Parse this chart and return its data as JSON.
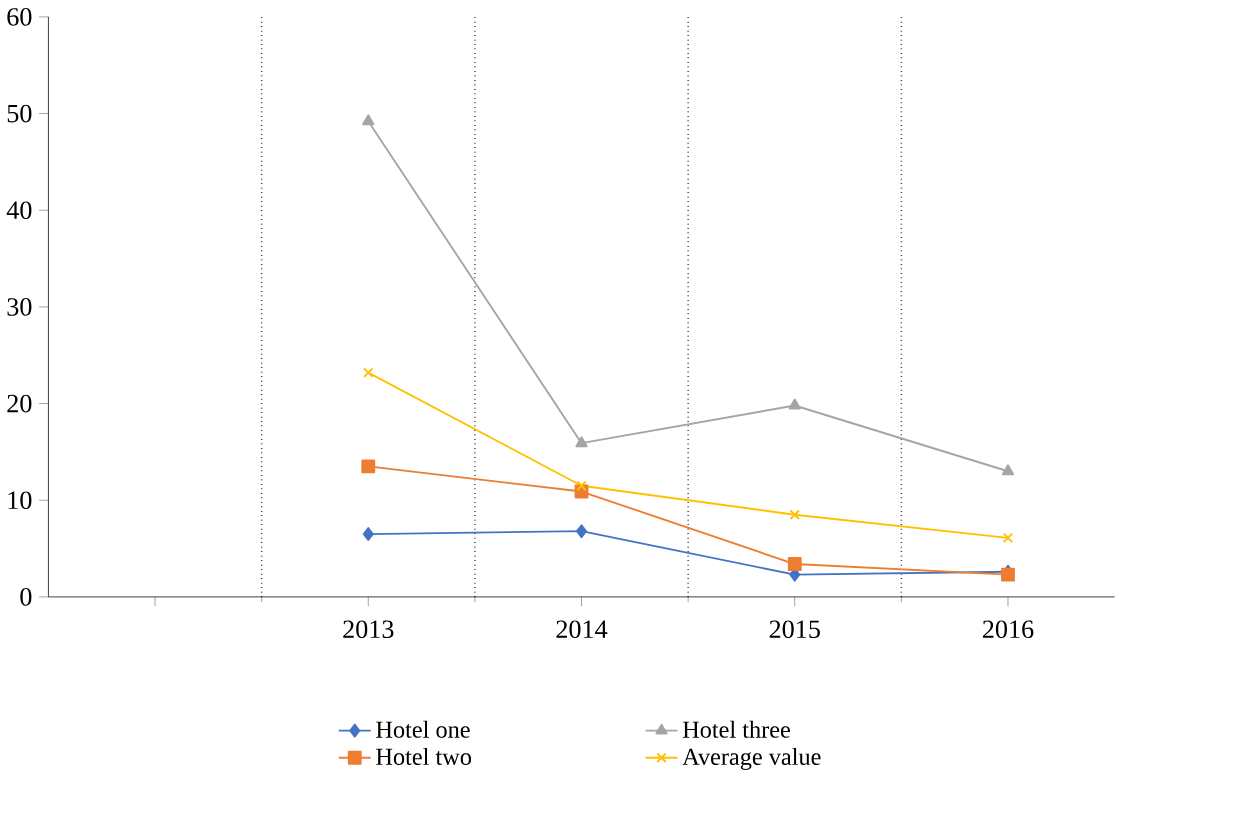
{
  "chart_data": {
    "type": "line",
    "categories": [
      null,
      "2013",
      "2014",
      "2015",
      "2016"
    ],
    "series": [
      {
        "name": "Hotel one",
        "color": "#4472c4",
        "marker": "diamond",
        "values": [
          null,
          6.5,
          6.8,
          2.3,
          2.6
        ]
      },
      {
        "name": "Hotel two",
        "color": "#ed7d31",
        "marker": "square",
        "values": [
          null,
          13.5,
          10.9,
          3.4,
          2.3
        ]
      },
      {
        "name": "Hotel three",
        "color": "#a5a5a5",
        "marker": "triangle",
        "values": [
          null,
          49.2,
          15.9,
          19.8,
          13.0
        ]
      },
      {
        "name": "Average value",
        "color": "#ffc000",
        "marker": "cross",
        "values": [
          null,
          23.2,
          11.5,
          8.5,
          6.1
        ]
      }
    ],
    "ylim": [
      0,
      60
    ],
    "yticks": [
      0,
      10,
      20,
      30,
      40,
      50,
      60
    ],
    "grid": "x",
    "legend": "bottom",
    "line_style": "solid"
  }
}
